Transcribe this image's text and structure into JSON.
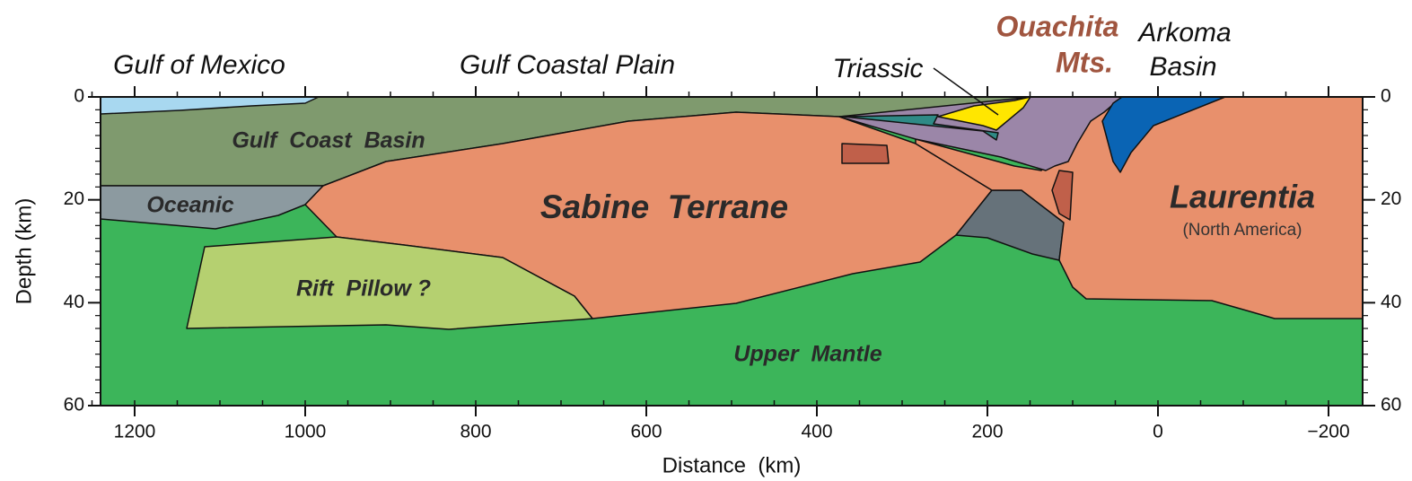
{
  "top_labels": {
    "gulf_of_mexico": "Gulf of Mexico",
    "gulf_coastal_plain": "Gulf Coastal Plain",
    "triassic": "Triassic",
    "ouachita": "Ouachita",
    "mts": "Mts.",
    "arkoma": "Arkoma",
    "basin": "Basin"
  },
  "units": {
    "gulf_coast_basin": "Gulf  Coast  Basin",
    "oceanic": "Oceanic",
    "sabine_terrane": "Sabine  Terrane",
    "laurentia": "Laurentia",
    "north_america": "(North America)",
    "rift_pillow": "Rift  Pillow ?",
    "upper_mantle": "Upper  Mantle"
  },
  "axes": {
    "x_label": "Distance  (km)",
    "y_label": "Depth (km)",
    "xlim": [
      1240,
      -240
    ],
    "xticks": [
      1200,
      1000,
      800,
      600,
      400,
      200,
      0,
      {
        "value": -200,
        "label": "−200"
      }
    ],
    "ylim": [
      0,
      60
    ],
    "yticks": [
      0,
      20,
      40,
      60
    ]
  }
}
